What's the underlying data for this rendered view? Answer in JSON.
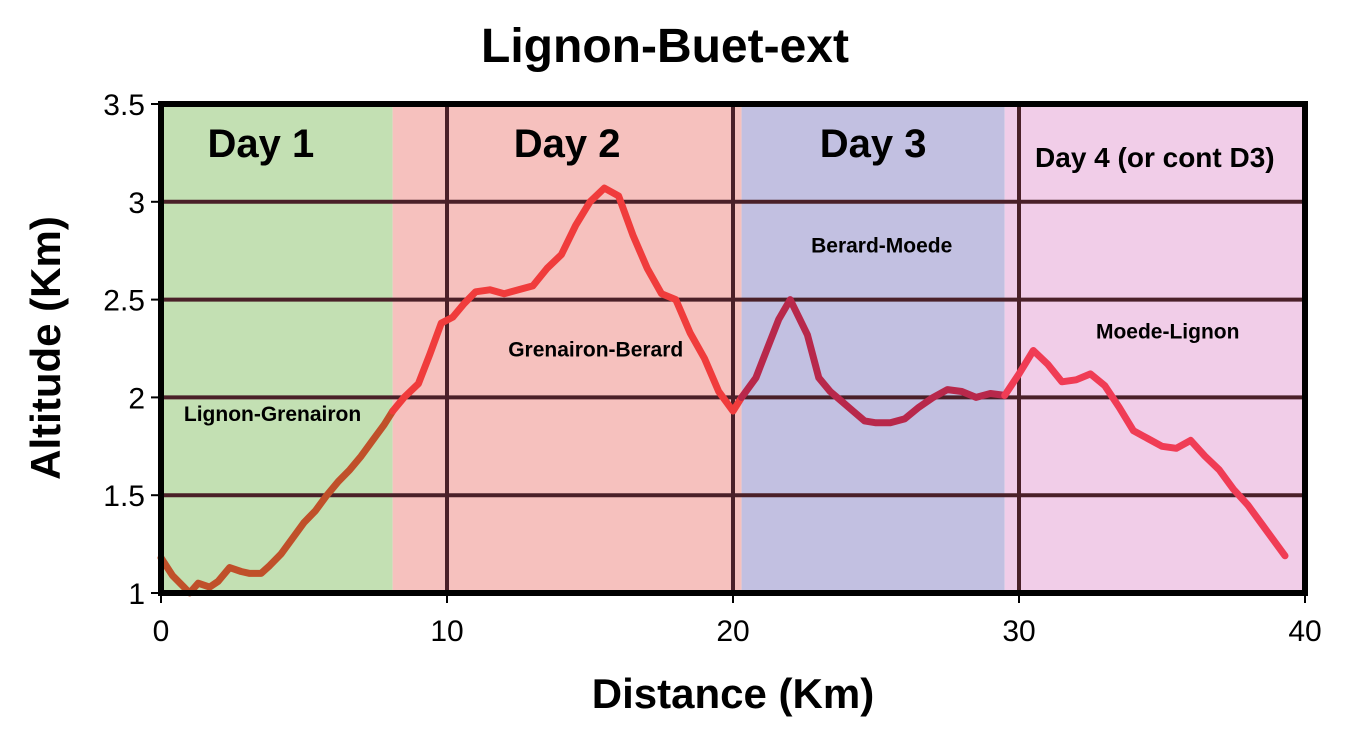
{
  "chart_data": {
    "type": "line",
    "title": "Lignon-Buet-ext",
    "xlabel": "Distance (Km)",
    "ylabel": "Altitude (Km)",
    "xlim": [
      0,
      40
    ],
    "ylim": [
      1,
      3.5
    ],
    "x_ticks": [
      "0",
      "10",
      "20",
      "30",
      "40"
    ],
    "y_ticks": [
      "1",
      "1.5",
      "2",
      "2.5",
      "3",
      "3.5"
    ],
    "grid": true,
    "day_bands": [
      {
        "label": "Day 1",
        "x_start": 0,
        "x_end": 8.1,
        "color": "#c3e0b3"
      },
      {
        "label": "Day 2",
        "x_start": 8.1,
        "x_end": 20.3,
        "color": "#f6c1be"
      },
      {
        "label": "Day 3",
        "x_start": 20.3,
        "x_end": 29.5,
        "color": "#c2c0e1"
      },
      {
        "label": "Day 4 (or cont D3)",
        "x_start": 29.5,
        "x_end": 40,
        "color": "#f1cde8"
      }
    ],
    "series": [
      {
        "name": "Lignon-Grenairon",
        "color": "#c0502a",
        "x": [
          0,
          0.4,
          0.8,
          1.0,
          1.3,
          1.7,
          2.0,
          2.4,
          2.8,
          3.1,
          3.5,
          3.8,
          4.2,
          4.6,
          5.0,
          5.4,
          5.8,
          6.2,
          6.6,
          7.0,
          7.4,
          7.8,
          8.1
        ],
        "y": [
          1.18,
          1.09,
          1.03,
          1.0,
          1.05,
          1.03,
          1.06,
          1.13,
          1.11,
          1.1,
          1.1,
          1.14,
          1.2,
          1.28,
          1.36,
          1.42,
          1.5,
          1.57,
          1.63,
          1.7,
          1.78,
          1.86,
          1.93
        ]
      },
      {
        "name": "Grenairon-Berard",
        "color": "#f03c3c",
        "x": [
          8.1,
          8.5,
          9.0,
          9.4,
          9.8,
          10.2,
          10.6,
          11.0,
          11.5,
          12.0,
          12.5,
          13.0,
          13.5,
          14.0,
          14.5,
          15.0,
          15.5,
          16.0,
          16.5,
          17.0,
          17.5,
          18.0,
          18.5,
          19.0,
          19.5,
          20.0,
          20.3
        ],
        "y": [
          1.93,
          2.0,
          2.07,
          2.22,
          2.38,
          2.41,
          2.48,
          2.54,
          2.55,
          2.53,
          2.55,
          2.57,
          2.66,
          2.73,
          2.88,
          3.0,
          3.07,
          3.03,
          2.83,
          2.66,
          2.53,
          2.5,
          2.33,
          2.2,
          2.03,
          1.93,
          2.0
        ]
      },
      {
        "name": "Berard-Moede",
        "color": "#b8284b",
        "x": [
          20.3,
          20.8,
          21.2,
          21.6,
          22.0,
          22.3,
          22.6,
          23.0,
          23.4,
          23.8,
          24.2,
          24.6,
          25.0,
          25.5,
          26.0,
          26.5,
          27.0,
          27.5,
          28.0,
          28.5,
          29.0,
          29.5
        ],
        "y": [
          2.0,
          2.1,
          2.25,
          2.4,
          2.5,
          2.41,
          2.32,
          2.1,
          2.03,
          1.98,
          1.93,
          1.88,
          1.87,
          1.87,
          1.89,
          1.95,
          2.0,
          2.04,
          2.03,
          2.0,
          2.02,
          2.01
        ]
      },
      {
        "name": "Moede-Lignon",
        "color": "#f03c55",
        "x": [
          29.5,
          30.0,
          30.5,
          31.0,
          31.5,
          32.0,
          32.5,
          33.0,
          33.5,
          34.0,
          34.5,
          35.0,
          35.5,
          36.0,
          36.5,
          37.0,
          37.5,
          38.0,
          38.5,
          39.0,
          39.3
        ],
        "y": [
          2.01,
          2.12,
          2.24,
          2.17,
          2.08,
          2.09,
          2.12,
          2.06,
          1.95,
          1.83,
          1.79,
          1.75,
          1.74,
          1.78,
          1.7,
          1.63,
          1.53,
          1.45,
          1.35,
          1.25,
          1.19
        ]
      }
    ],
    "segment_labels": [
      {
        "text": "Lignon-Grenairon",
        "x": 3.9,
        "y": 1.88
      },
      {
        "text": "Grenairon-Berard",
        "x": 15.2,
        "y": 2.21
      },
      {
        "text": "Berard-Moede",
        "x": 25.2,
        "y": 2.74
      },
      {
        "text": "Moede-Lignon",
        "x": 35.2,
        "y": 2.3
      }
    ]
  }
}
